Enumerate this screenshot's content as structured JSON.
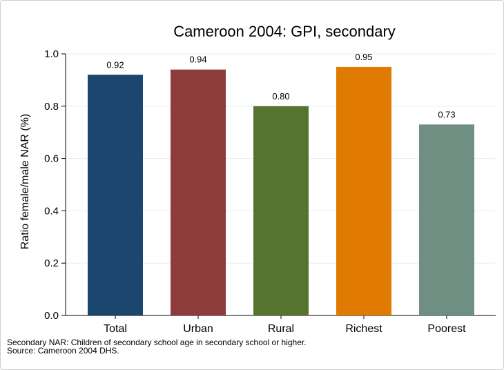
{
  "chart_data": {
    "type": "bar",
    "title": "Cameroon 2004: GPI, secondary",
    "xlabel": "",
    "ylabel": "Ratio female/male NAR (%)",
    "categories": [
      "Total",
      "Urban",
      "Rural",
      "Richest",
      "Poorest"
    ],
    "values": [
      0.92,
      0.94,
      0.8,
      0.95,
      0.73
    ],
    "value_labels": [
      "0.92",
      "0.94",
      "0.80",
      "0.95",
      "0.73"
    ],
    "colors": [
      "#1b466e",
      "#8e3b3c",
      "#55752f",
      "#e07a00",
      "#6e8f82"
    ],
    "ylim": [
      0,
      1.0
    ],
    "yticks": [
      0,
      0.2,
      0.4,
      0.6,
      0.8,
      1.0
    ],
    "ytick_labels": [
      "0.0",
      "0.2",
      "0.4",
      "0.6",
      "0.8",
      "1.0"
    ],
    "grid": true,
    "legend": "none",
    "notes": [
      "Secondary NAR: Children of secondary school age in secondary school or higher.",
      "Source: Cameroon 2004 DHS."
    ]
  }
}
